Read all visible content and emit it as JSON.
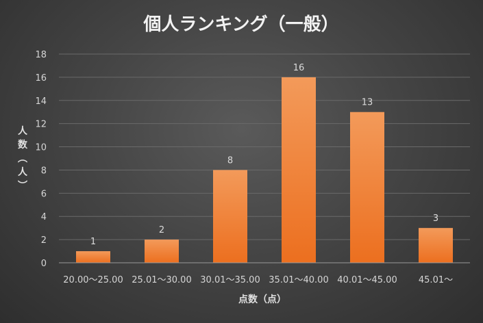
{
  "chart_data": {
    "type": "bar",
    "title": "個人ランキング（一般）",
    "xlabel": "点数（点）",
    "ylabel": "人数（人）",
    "categories": [
      "20.00～25.00",
      "25.01～30.00",
      "30.01～35.00",
      "35.01～40.00",
      "40.01～45.00",
      "45.01～"
    ],
    "values": [
      1,
      2,
      8,
      16,
      13,
      3
    ],
    "ylim": [
      0,
      18
    ],
    "yticks": [
      0,
      2,
      4,
      6,
      8,
      10,
      12,
      14,
      16,
      18
    ],
    "grid": true,
    "legend": "none",
    "colors": {
      "bar_top": "#f39a5a",
      "bar_bottom": "#ec6f1f",
      "background": "#454545"
    }
  }
}
